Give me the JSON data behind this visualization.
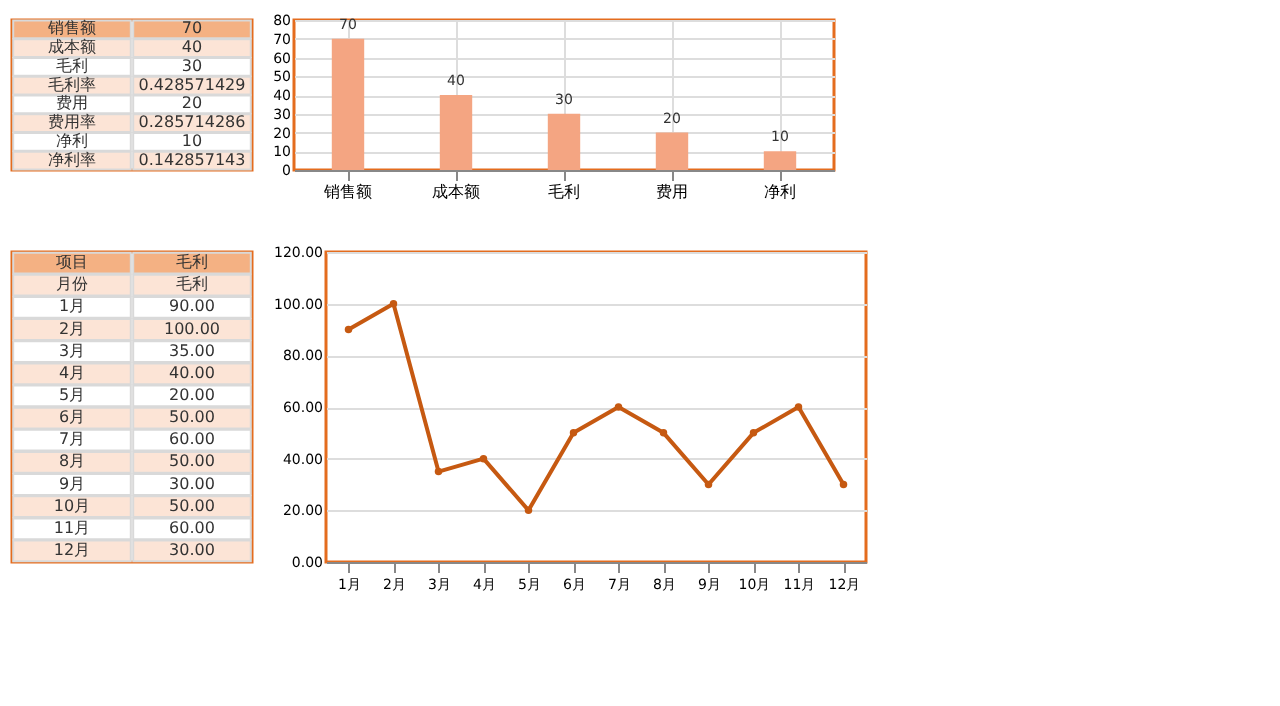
{
  "chart_data": [
    {
      "type": "bar",
      "categories": [
        "销售额",
        "成本额",
        "毛利",
        "费用",
        "净利"
      ],
      "values": [
        70,
        40,
        30,
        20,
        10
      ],
      "color": "#f4a582",
      "ylim": [
        0,
        80
      ],
      "yticks": [
        0,
        10,
        20,
        30,
        40,
        50,
        60,
        70,
        80
      ],
      "grid": true,
      "data_labels": true,
      "annotations": [
        "销售额",
        "70",
        "成本额",
        "40",
        "毛利",
        "30",
        "毛利率",
        "0.428571429",
        "费用",
        "20",
        "费用率",
        "0.285714286",
        "净利",
        "10",
        "净利率",
        "0.142857143"
      ]
    },
    {
      "type": "line",
      "categories": [
        "1月",
        "2月",
        "3月",
        "4月",
        "5月",
        "6月",
        "7月",
        "8月",
        "9月",
        "10月",
        "11月",
        "12月"
      ],
      "values": [
        90,
        100,
        35,
        40,
        20,
        50,
        60,
        50,
        30,
        50,
        60,
        30
      ],
      "color": "#c65911",
      "marker": "circle",
      "ylim": [
        0,
        120
      ],
      "yticks": [
        {
          "value": 0,
          "label": "0.00"
        },
        {
          "value": 20,
          "label": "20.00"
        },
        {
          "value": 40,
          "label": "40.00"
        },
        {
          "value": 60,
          "label": "60.00"
        },
        {
          "value": 80,
          "label": "80.00"
        },
        {
          "value": 100,
          "label": "100.00"
        },
        {
          "value": 120,
          "label": "120.00"
        }
      ],
      "grid": "y",
      "annotations": [
        "项目",
        "毛利",
        "月份",
        "毛利",
        "1月",
        "90.00",
        "2月",
        "100.00",
        "3月",
        "35.00",
        "4月",
        "40.00",
        "5月",
        "20.00",
        "6月",
        "50.00",
        "7月",
        "60.00",
        "8月",
        "50.00",
        "9月",
        "30.00",
        "10月",
        "50.00",
        "11月",
        "60.00",
        "12月",
        "30.00"
      ]
    }
  ]
}
